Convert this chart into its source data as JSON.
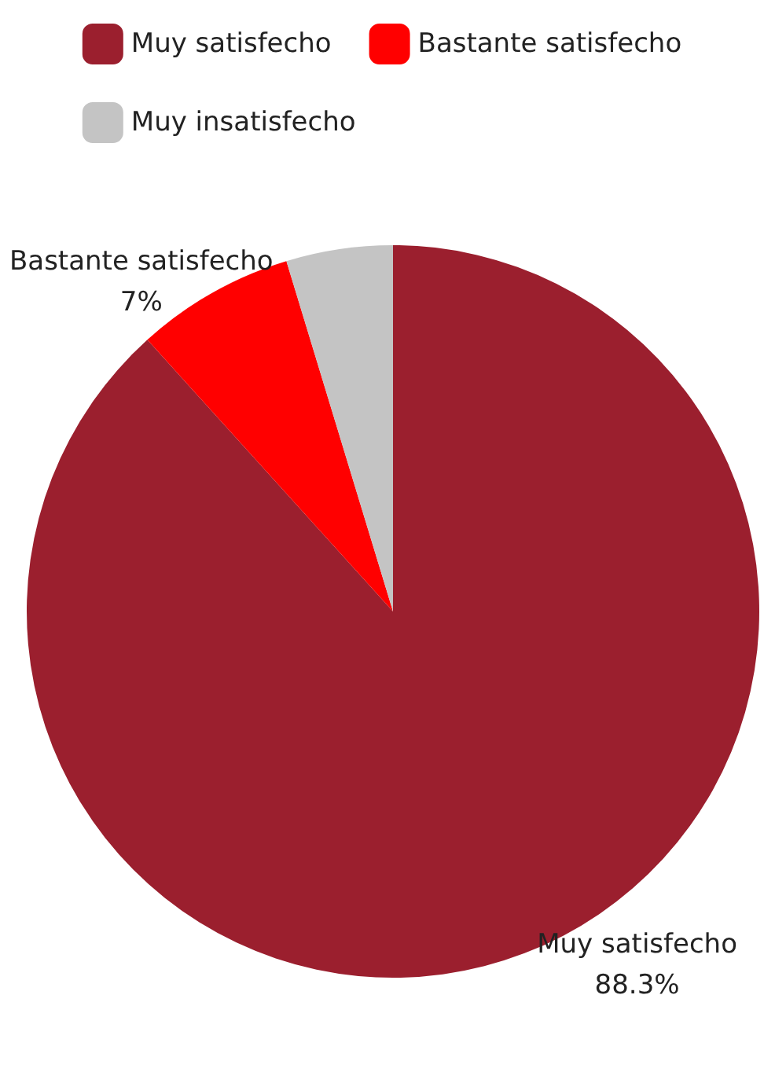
{
  "chart_data": {
    "type": "pie",
    "categories": [
      "Muy satisfecho",
      "Bastante satisfecho",
      "Muy insatisfecho"
    ],
    "values": [
      88.3,
      7,
      4.7
    ],
    "colors": [
      "#9b1f2e",
      "#ff0000",
      "#c4c4c4"
    ],
    "value_labels": [
      "88.3%",
      "7%",
      null
    ],
    "legend": "top"
  }
}
